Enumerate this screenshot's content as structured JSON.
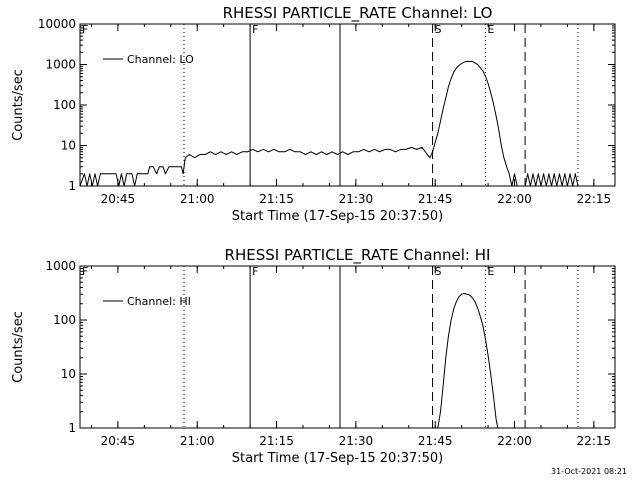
{
  "timestamp": "31-Oct-2021 08:21",
  "chart_data": [
    {
      "type": "line",
      "title": "RHESSI PARTICLE_RATE Channel: LO",
      "xlabel": "Start Time (17-Sep-15 20:37:50)",
      "ylabel": "Counts/sec",
      "yscale": "log",
      "xlim": [
        "20:37:50",
        "22:19:00"
      ],
      "ylim": [
        1,
        10000
      ],
      "xticks": [
        "20:45",
        "21:00",
        "21:15",
        "21:30",
        "21:45",
        "22:00",
        "22:15"
      ],
      "yticks": [
        "1",
        "10",
        "100",
        "1000",
        "10000"
      ],
      "legend": {
        "label": "Channel: LO",
        "placement": "top-left"
      },
      "markers": [
        {
          "label": "F",
          "time": "20:37:50",
          "style": "dotted"
        },
        {
          "label": "",
          "time": "20:57:30",
          "style": "dotted"
        },
        {
          "label": "F",
          "time": "21:10:00",
          "style": "solid"
        },
        {
          "label": "",
          "time": "21:27:00",
          "style": "solid"
        },
        {
          "label": "S",
          "time": "21:44:30",
          "style": "dashed"
        },
        {
          "label": "E",
          "time": "21:54:30",
          "style": "dotted"
        },
        {
          "label": "",
          "time": "22:02:00",
          "style": "dashed"
        },
        {
          "label": "",
          "time": "22:12:00",
          "style": "dotted"
        }
      ],
      "series": [
        {
          "name": "Channel: LO",
          "points": [
            [
              "20:37:50",
              1
            ],
            [
              "20:38:40",
              2
            ],
            [
              "20:39:10",
              1
            ],
            [
              "20:39:40",
              2
            ],
            [
              "20:40:10",
              1
            ],
            [
              "20:40:40",
              2
            ],
            [
              "20:41:10",
              1
            ],
            [
              "20:41:40",
              2
            ],
            [
              "20:42:10",
              2
            ],
            [
              "20:42:40",
              2
            ],
            [
              "20:43:10",
              2
            ],
            [
              "20:43:40",
              2
            ],
            [
              "20:44:10",
              2
            ],
            [
              "20:44:40",
              2
            ],
            [
              "20:45:10",
              1
            ],
            [
              "20:45:40",
              2
            ],
            [
              "20:46:10",
              1
            ],
            [
              "20:46:40",
              2
            ],
            [
              "20:47:10",
              2
            ],
            [
              "20:47:40",
              2
            ],
            [
              "20:48:10",
              1
            ],
            [
              "20:48:40",
              2
            ],
            [
              "20:49:40",
              2
            ],
            [
              "20:50:40",
              2
            ],
            [
              "20:51:00",
              3
            ],
            [
              "20:51:40",
              3
            ],
            [
              "20:52:20",
              2
            ],
            [
              "20:52:50",
              3
            ],
            [
              "20:53:30",
              3
            ],
            [
              "20:54:00",
              2
            ],
            [
              "20:54:40",
              3
            ],
            [
              "20:55:20",
              3
            ],
            [
              "20:56:00",
              3
            ],
            [
              "20:57:00",
              3
            ],
            [
              "20:57:20",
              2
            ],
            [
              "20:57:45",
              5
            ],
            [
              "20:58:30",
              6
            ],
            [
              "20:59:30",
              5
            ],
            [
              "21:00:30",
              6
            ],
            [
              "21:01:30",
              6
            ],
            [
              "21:02:30",
              7
            ],
            [
              "21:03:30",
              6
            ],
            [
              "21:04:30",
              7
            ],
            [
              "21:05:30",
              6
            ],
            [
              "21:06:30",
              7
            ],
            [
              "21:07:30",
              6
            ],
            [
              "21:08:30",
              7
            ],
            [
              "21:09:30",
              7
            ],
            [
              "21:10:30",
              8
            ],
            [
              "21:11:30",
              7
            ],
            [
              "21:12:30",
              8
            ],
            [
              "21:13:30",
              7
            ],
            [
              "21:14:30",
              8
            ],
            [
              "21:15:30",
              7
            ],
            [
              "21:16:30",
              7
            ],
            [
              "21:17:30",
              8
            ],
            [
              "21:18:30",
              7
            ],
            [
              "21:19:30",
              7
            ],
            [
              "21:20:30",
              6
            ],
            [
              "21:21:30",
              7
            ],
            [
              "21:22:30",
              6
            ],
            [
              "21:23:30",
              7
            ],
            [
              "21:24:30",
              6
            ],
            [
              "21:25:30",
              7
            ],
            [
              "21:26:30",
              6
            ],
            [
              "21:27:30",
              7
            ],
            [
              "21:28:30",
              6
            ],
            [
              "21:29:30",
              7
            ],
            [
              "21:30:30",
              7
            ],
            [
              "21:31:30",
              8
            ],
            [
              "21:32:30",
              7
            ],
            [
              "21:33:30",
              8
            ],
            [
              "21:34:30",
              7
            ],
            [
              "21:35:30",
              8
            ],
            [
              "21:36:30",
              8
            ],
            [
              "21:37:30",
              7
            ],
            [
              "21:38:30",
              8
            ],
            [
              "21:39:30",
              8
            ],
            [
              "21:40:30",
              9
            ],
            [
              "21:41:30",
              8
            ],
            [
              "21:42:30",
              9
            ],
            [
              "21:43:30",
              6
            ],
            [
              "21:44:00",
              5
            ],
            [
              "21:44:30",
              7
            ],
            [
              "21:45:00",
              12
            ],
            [
              "21:45:30",
              20
            ],
            [
              "21:46:00",
              40
            ],
            [
              "21:46:30",
              80
            ],
            [
              "21:47:00",
              150
            ],
            [
              "21:47:30",
              280
            ],
            [
              "21:48:00",
              450
            ],
            [
              "21:48:30",
              650
            ],
            [
              "21:49:00",
              820
            ],
            [
              "21:49:30",
              950
            ],
            [
              "21:50:00",
              1050
            ],
            [
              "21:50:30",
              1150
            ],
            [
              "21:51:00",
              1200
            ],
            [
              "21:51:30",
              1180
            ],
            [
              "21:52:00",
              1200
            ],
            [
              "21:52:30",
              1100
            ],
            [
              "21:53:00",
              1000
            ],
            [
              "21:53:30",
              850
            ],
            [
              "21:54:00",
              700
            ],
            [
              "21:54:30",
              520
            ],
            [
              "21:55:00",
              340
            ],
            [
              "21:55:30",
              200
            ],
            [
              "21:56:00",
              110
            ],
            [
              "21:56:30",
              55
            ],
            [
              "21:57:00",
              25
            ],
            [
              "21:57:30",
              10
            ],
            [
              "21:58:00",
              5
            ],
            [
              "21:58:30",
              3
            ],
            [
              "21:59:00",
              2
            ],
            [
              "21:59:30",
              1
            ],
            [
              "22:00:00",
              2
            ],
            [
              "22:00:30",
              1
            ],
            [
              "22:02:00",
              1
            ],
            [
              "22:02:30",
              2
            ],
            [
              "22:03:00",
              1
            ],
            [
              "22:03:30",
              2
            ],
            [
              "22:04:00",
              1
            ],
            [
              "22:04:30",
              2
            ],
            [
              "22:05:00",
              1
            ],
            [
              "22:05:30",
              2
            ],
            [
              "22:06:00",
              1
            ],
            [
              "22:06:30",
              2
            ],
            [
              "22:07:00",
              1
            ],
            [
              "22:07:30",
              2
            ],
            [
              "22:08:00",
              1
            ],
            [
              "22:08:30",
              2
            ],
            [
              "22:09:00",
              1
            ],
            [
              "22:09:30",
              2
            ],
            [
              "22:10:00",
              1
            ],
            [
              "22:10:30",
              2
            ],
            [
              "22:11:00",
              1
            ],
            [
              "22:11:30",
              2
            ],
            [
              "22:12:00",
              1
            ]
          ]
        }
      ]
    },
    {
      "type": "line",
      "title": "RHESSI PARTICLE_RATE Channel: HI",
      "xlabel": "Start Time (17-Sep-15 20:37:50)",
      "ylabel": "Counts/sec",
      "yscale": "log",
      "xlim": [
        "20:37:50",
        "22:19:00"
      ],
      "ylim": [
        1,
        1000
      ],
      "xticks": [
        "20:45",
        "21:00",
        "21:15",
        "21:30",
        "21:45",
        "22:00",
        "22:15"
      ],
      "yticks": [
        "1",
        "10",
        "100",
        "1000"
      ],
      "legend": {
        "label": "Channel: HI",
        "placement": "top-left"
      },
      "markers": [
        {
          "label": "F",
          "time": "20:37:50",
          "style": "dotted"
        },
        {
          "label": "",
          "time": "20:57:30",
          "style": "dotted"
        },
        {
          "label": "F",
          "time": "21:10:00",
          "style": "solid"
        },
        {
          "label": "",
          "time": "21:27:00",
          "style": "solid"
        },
        {
          "label": "S",
          "time": "21:44:30",
          "style": "dashed"
        },
        {
          "label": "E",
          "time": "21:54:30",
          "style": "dotted"
        },
        {
          "label": "",
          "time": "22:02:00",
          "style": "dashed"
        },
        {
          "label": "",
          "time": "22:12:00",
          "style": "dotted"
        }
      ],
      "series": [
        {
          "name": "Channel: HI",
          "points": [
            [
              "21:45:30",
              1
            ],
            [
              "21:46:00",
              2
            ],
            [
              "21:46:30",
              6
            ],
            [
              "21:47:00",
              20
            ],
            [
              "21:47:30",
              50
            ],
            [
              "21:48:00",
              100
            ],
            [
              "21:48:30",
              160
            ],
            [
              "21:49:00",
              220
            ],
            [
              "21:49:30",
              270
            ],
            [
              "21:50:00",
              300
            ],
            [
              "21:50:30",
              310
            ],
            [
              "21:51:00",
              300
            ],
            [
              "21:51:30",
              290
            ],
            [
              "21:52:00",
              260
            ],
            [
              "21:52:30",
              220
            ],
            [
              "21:53:00",
              170
            ],
            [
              "21:53:30",
              120
            ],
            [
              "21:54:00",
              80
            ],
            [
              "21:54:30",
              45
            ],
            [
              "21:55:00",
              22
            ],
            [
              "21:55:30",
              10
            ],
            [
              "21:56:00",
              4
            ],
            [
              "21:56:30",
              1.5
            ],
            [
              "21:56:50",
              1
            ]
          ]
        }
      ]
    }
  ]
}
